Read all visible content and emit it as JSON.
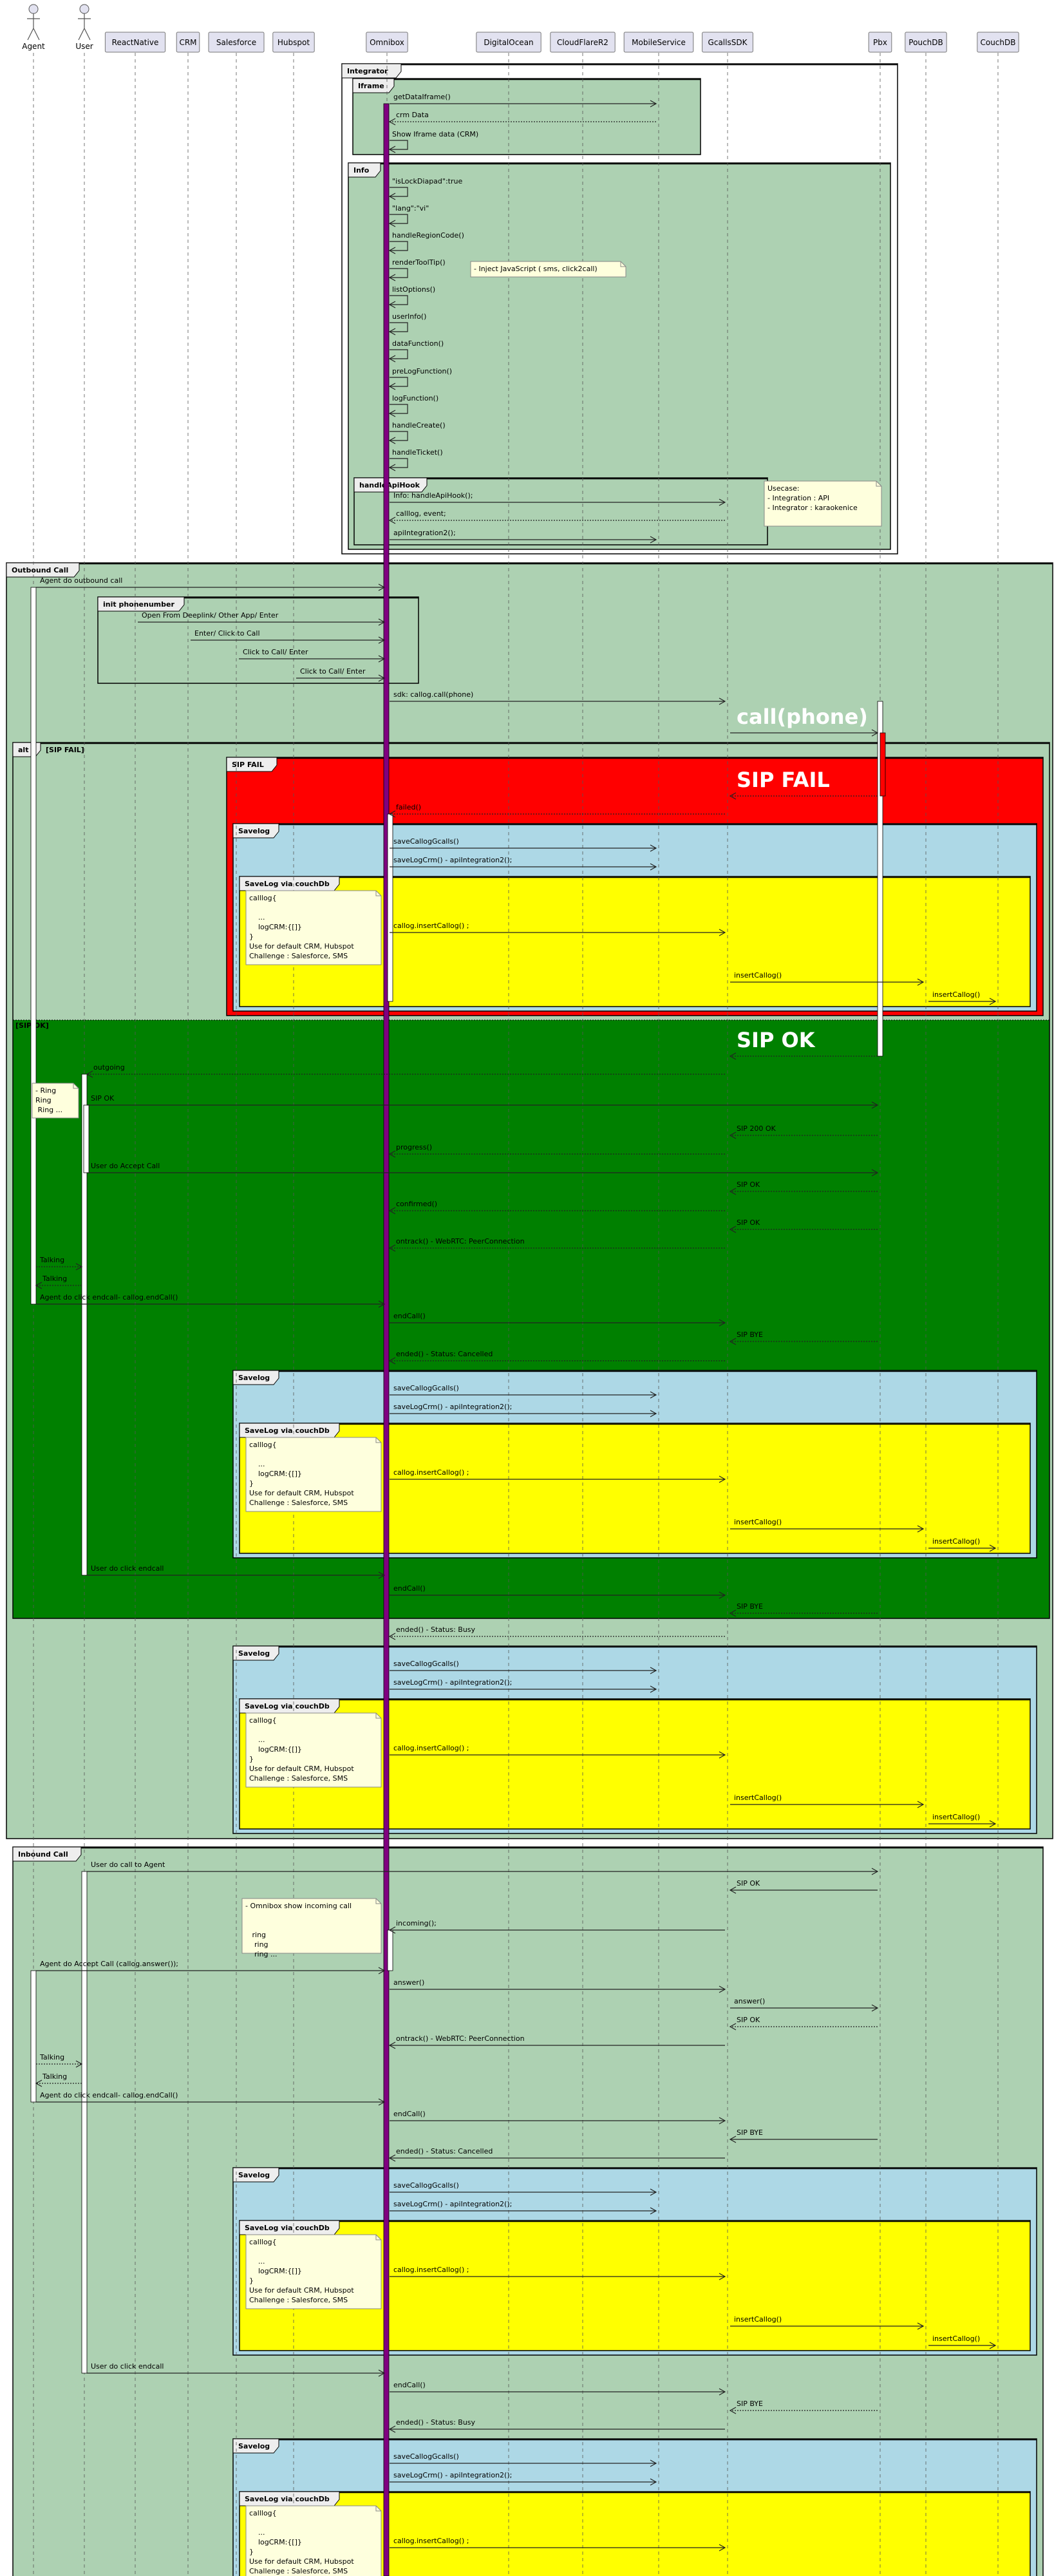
{
  "participants": [
    {
      "name": "Agent",
      "type": "actor"
    },
    {
      "name": "User",
      "type": "actor"
    },
    {
      "name": "ReactNative",
      "type": "participant"
    },
    {
      "name": "CRM",
      "type": "participant"
    },
    {
      "name": "Salesforce",
      "type": "participant"
    },
    {
      "name": "Hubspot",
      "type": "participant"
    },
    {
      "name": "Omnibox",
      "type": "participant"
    },
    {
      "name": "DigitalOcean",
      "type": "participant"
    },
    {
      "name": "CloudFlareR2",
      "type": "participant"
    },
    {
      "name": "MobileService",
      "type": "participant"
    },
    {
      "name": "GcallsSDK",
      "type": "participant"
    },
    {
      "name": "Pbx",
      "type": "participant"
    },
    {
      "name": "PouchDB",
      "type": "participant"
    },
    {
      "name": "CouchDB",
      "type": "participant"
    }
  ],
  "frames": {
    "integrator": "Integrator",
    "iframe": "Iframe",
    "info": "Info",
    "api_hook": "handleApiHook",
    "outbound": "Outbound Call",
    "init": "init phonenumber",
    "alt": "alt",
    "alt_guard": "[SIP FAIL]",
    "else_guard": "[SIP OK]",
    "sip_fail": "SIP FAIL",
    "inbound": "Inbound Call"
  },
  "notes": {
    "inject": {
      "lines": [
        "- Inject JavaScript ( sms, click2call)"
      ]
    },
    "usecase": {
      "lines": [
        "Usecase:",
        "- Integration : API",
        "- Integrator : karaokenice"
      ]
    },
    "ring": {
      "lines": [
        "- Ring",
        "Ring",
        " Ring ..."
      ]
    },
    "incoming": {
      "lines": [
        "- Omnibox show incoming call",
        "",
        "",
        "   ring",
        "    ring",
        "    ring ..."
      ]
    }
  },
  "messages": [
    {
      "from": "Omnibox",
      "to": "MobileService",
      "label": "getDataIframe()"
    },
    {
      "from": "MobileService",
      "to": "Omnibox",
      "label": "crm Data",
      "dashed": true
    },
    {
      "from": "Omnibox",
      "to": "Omnibox",
      "label": "Show Iframe data (CRM)"
    },
    {
      "from": "Omnibox",
      "to": "Omnibox",
      "label": "\"isLockDiapad\":true"
    },
    {
      "from": "Omnibox",
      "to": "Omnibox",
      "label": "\"lang\":\"vi\""
    },
    {
      "from": "Omnibox",
      "to": "Omnibox",
      "label": "handleRegionCode()"
    },
    {
      "from": "Omnibox",
      "to": "Omnibox",
      "label": "renderToolTip()"
    },
    {
      "from": "Omnibox",
      "to": "Omnibox",
      "label": "listOptions()"
    },
    {
      "from": "Omnibox",
      "to": "Omnibox",
      "label": "userInfo()"
    },
    {
      "from": "Omnibox",
      "to": "Omnibox",
      "label": "dataFunction()"
    },
    {
      "from": "Omnibox",
      "to": "Omnibox",
      "label": "preLogFunction()"
    },
    {
      "from": "Omnibox",
      "to": "Omnibox",
      "label": "logFunction()"
    },
    {
      "from": "Omnibox",
      "to": "Omnibox",
      "label": "handleCreate()"
    },
    {
      "from": "Omnibox",
      "to": "Omnibox",
      "label": "handleTicket()"
    },
    {
      "from": "Omnibox",
      "to": "GcallsSDK",
      "label": "Info: handleApiHook();"
    },
    {
      "from": "GcallsSDK",
      "to": "Omnibox",
      "label": "calllog, event;",
      "dashed": true
    },
    {
      "from": "Omnibox",
      "to": "MobileService",
      "label": "apiIntegration2();"
    },
    {
      "from": "Agent",
      "to": "Omnibox",
      "label": "Agent do outbound call"
    },
    {
      "from": "ReactNative",
      "to": "Omnibox",
      "label": "Open From Deeplink/ Other App/ Enter"
    },
    {
      "from": "CRM",
      "to": "Omnibox",
      "label": "Enter/ Click to Call"
    },
    {
      "from": "Salesforce",
      "to": "Omnibox",
      "label": "Click to Call/ Enter"
    },
    {
      "from": "Hubspot",
      "to": "Omnibox",
      "label": "Click to Call/ Enter"
    },
    {
      "from": "Omnibox",
      "to": "GcallsSDK",
      "label": "sdk: callog.call(phone)"
    },
    {
      "from": "GcallsSDK",
      "to": "Pbx",
      "label": "call(phone)",
      "big": true
    },
    {
      "from": "Pbx",
      "to": "GcallsSDK",
      "label": "SIP FAIL",
      "dashed": true,
      "big": true
    },
    {
      "from": "GcallsSDK",
      "to": "Omnibox",
      "label": "failed()",
      "dashed": true
    },
    {
      "include": "savelog"
    },
    {
      "from": "Pbx",
      "to": "GcallsSDK",
      "label": "SIP OK",
      "dashed": true,
      "big": true
    },
    {
      "from": "GcallsSDK",
      "to": "User",
      "label": "outgoing",
      "dashed": true
    },
    {
      "from": "User",
      "to": "Pbx",
      "label": "SIP OK"
    },
    {
      "from": "Pbx",
      "to": "GcallsSDK",
      "label": "SIP 200 OK",
      "dashed": true
    },
    {
      "from": "GcallsSDK",
      "to": "Omnibox",
      "label": "progress()",
      "dashed": true
    },
    {
      "from": "User",
      "to": "Pbx",
      "label": "User do Accept Call"
    },
    {
      "from": "Pbx",
      "to": "GcallsSDK",
      "label": "SIP OK",
      "dashed": true
    },
    {
      "from": "GcallsSDK",
      "to": "Omnibox",
      "label": "confirmed()",
      "dashed": true
    },
    {
      "from": "Pbx",
      "to": "GcallsSDK",
      "label": "SIP OK",
      "dashed": true
    },
    {
      "from": "GcallsSDK",
      "to": "Omnibox",
      "label": "ontrack() - WebRTC: PeerConnection",
      "dashed": true
    },
    {
      "from": "Agent",
      "to": "User",
      "label": "Talking",
      "dashed": true
    },
    {
      "from": "User",
      "to": "Agent",
      "label": "Talking",
      "dashed": true
    },
    {
      "from": "Agent",
      "to": "Omnibox",
      "label": "Agent do click endcall- callog.endCall()"
    },
    {
      "from": "Omnibox",
      "to": "GcallsSDK",
      "label": "endCall()"
    },
    {
      "from": "Pbx",
      "to": "GcallsSDK",
      "label": "SIP BYE",
      "dashed": true
    },
    {
      "from": "GcallsSDK",
      "to": "Omnibox",
      "label": "ended() - Status: Cancelled",
      "dashed": true
    },
    {
      "include": "savelog"
    },
    {
      "from": "User",
      "to": "Omnibox",
      "label": "User do click endcall"
    },
    {
      "from": "Omnibox",
      "to": "GcallsSDK",
      "label": "endCall()"
    },
    {
      "from": "Pbx",
      "to": "GcallsSDK",
      "label": "SIP BYE",
      "dashed": true
    },
    {
      "from": "GcallsSDK",
      "to": "Omnibox",
      "label": "ended() - Status: Busy",
      "dashed": true
    },
    {
      "include": "savelog"
    },
    {
      "from": "User",
      "to": "Pbx",
      "label": "User do call to Agent"
    },
    {
      "from": "Pbx",
      "to": "GcallsSDK",
      "label": "SIP OK"
    },
    {
      "from": "GcallsSDK",
      "to": "Omnibox",
      "label": "incoming();"
    },
    {
      "from": "Agent",
      "to": "Omnibox",
      "label": "Agent do Accept Call (callog.answer());"
    },
    {
      "from": "Omnibox",
      "to": "GcallsSDK",
      "label": "answer()"
    },
    {
      "from": "GcallsSDK",
      "to": "Pbx",
      "label": "answer()"
    },
    {
      "from": "Pbx",
      "to": "GcallsSDK",
      "label": "SIP OK",
      "dashed": true
    },
    {
      "from": "GcallsSDK",
      "to": "Omnibox",
      "label": "ontrack() - WebRTC: PeerConnection"
    },
    {
      "from": "Agent",
      "to": "User",
      "label": "Talking",
      "dashed": true
    },
    {
      "from": "User",
      "to": "Agent",
      "label": "Talking",
      "dashed": true
    },
    {
      "from": "Agent",
      "to": "Omnibox",
      "label": "Agent do click endcall- callog.endCall()"
    },
    {
      "from": "Omnibox",
      "to": "GcallsSDK",
      "label": "endCall()"
    },
    {
      "from": "Pbx",
      "to": "GcallsSDK",
      "label": "SIP BYE"
    },
    {
      "from": "GcallsSDK",
      "to": "Omnibox",
      "label": "ended() - Status: Cancelled"
    },
    {
      "include": "savelog"
    },
    {
      "from": "User",
      "to": "Omnibox",
      "label": "User do click endcall"
    },
    {
      "from": "Omnibox",
      "to": "GcallsSDK",
      "label": "endCall()"
    },
    {
      "from": "Pbx",
      "to": "GcallsSDK",
      "label": "SIP BYE",
      "dashed": true
    },
    {
      "from": "GcallsSDK",
      "to": "Omnibox",
      "label": "ended() - Status: Busy"
    },
    {
      "include": "savelog"
    }
  ],
  "savelog": {
    "title": "Savelog",
    "couchdb_title": "SaveLog via couchDb",
    "note_lines": [
      "calllog{",
      "",
      "    ...",
      "    logCRM:{[]}",
      "}",
      "Use for default CRM, Hubspot",
      "Challenge : Salesforce, SMS"
    ],
    "messages": [
      {
        "from": "Omnibox",
        "to": "MobileService",
        "label": "saveCallogGcalls()"
      },
      {
        "from": "Omnibox",
        "to": "MobileService",
        "label": "saveLogCrm() - apiIntegration2();"
      },
      {
        "from": "Omnibox",
        "to": "GcallsSDK",
        "label": "callog.insertCallog() ;"
      },
      {
        "from": "GcallsSDK",
        "to": "PouchDB",
        "label": "insertCallog()"
      },
      {
        "from": "PouchDB",
        "to": "CouchDB",
        "label": "insertCallog()"
      }
    ]
  },
  "colors": {
    "group_bg": "#ADD1B2",
    "sip_ok_bg": "#008000",
    "sip_fail_bg": "#FF0000",
    "savelog_bg": "#ADD8E6",
    "couchdb_bg": "#FFFF00",
    "omnibox_activation": "#800080",
    "note_bg": "#FEFFDD",
    "participant_bg": "#E2E2F0"
  }
}
